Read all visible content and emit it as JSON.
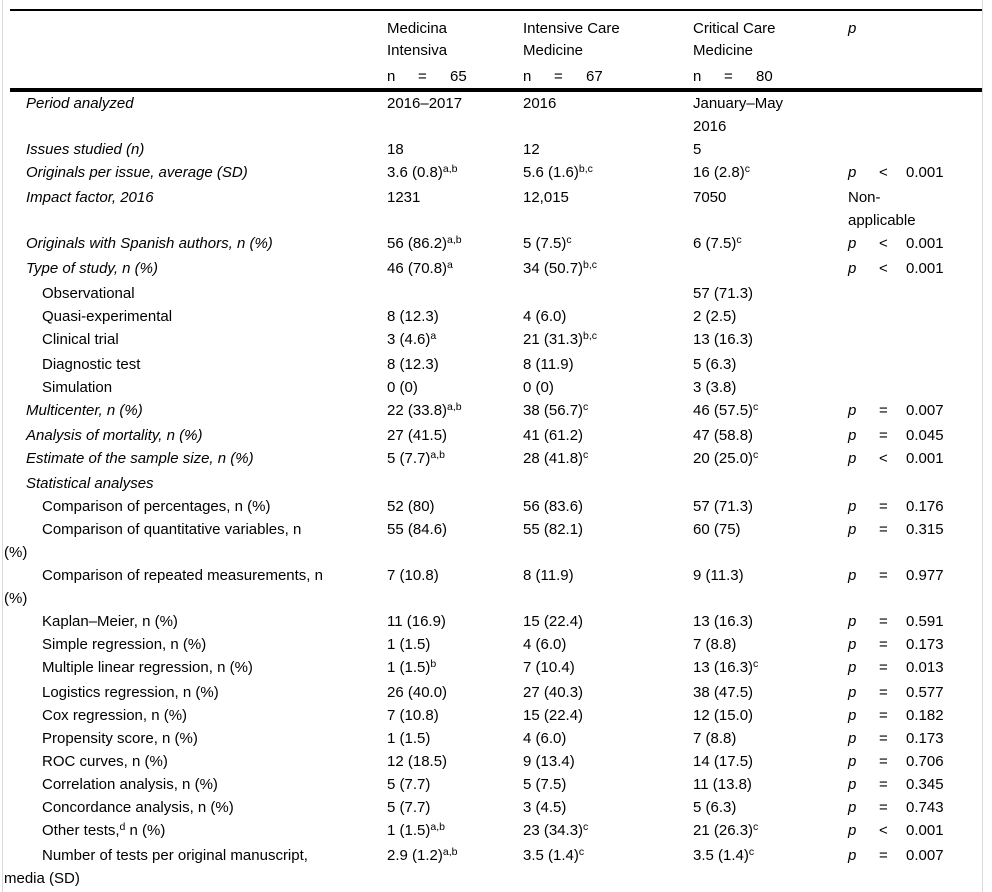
{
  "table": {
    "p_letter": "p",
    "columns": [
      "Medicina\nIntensiva",
      "Intensive Care\nMedicine",
      "Critical Care\nMedicine",
      "p"
    ],
    "n_row": [
      {
        "letter": "n",
        "op": "=",
        "value": "65"
      },
      {
        "letter": "n",
        "op": "=",
        "value": "67"
      },
      {
        "letter": "n",
        "op": "=",
        "value": "80"
      }
    ],
    "rows": [
      {
        "label": "Period analyzed",
        "italic": true,
        "indent": 0,
        "cells": [
          {
            "t": "2016–2017"
          },
          {
            "t": "2016"
          },
          {
            "t": "January–May\n2016"
          }
        ],
        "p": null
      },
      {
        "label": "Issues studied (n)",
        "italic": true,
        "indent": 0,
        "cells": [
          {
            "t": "18"
          },
          {
            "t": "12"
          },
          {
            "t": "5"
          }
        ],
        "p": null
      },
      {
        "label": "Originals per issue, average (SD)",
        "italic": true,
        "indent": 0,
        "cells": [
          {
            "t": "3.6 (0.8)",
            "sup": "a,b"
          },
          {
            "t": "5.6 (1.6)",
            "sup": "b,c"
          },
          {
            "t": "16 (2.8)",
            "sup": "c"
          }
        ],
        "p": {
          "op": "<",
          "value": "0.001"
        }
      },
      {
        "label": "Impact factor, 2016",
        "italic": true,
        "indent": 0,
        "cells": [
          {
            "t": "1231"
          },
          {
            "t": "12,015"
          },
          {
            "t": "7050"
          }
        ],
        "p": {
          "text": "Non-\napplicable"
        }
      },
      {
        "label": "Originals with Spanish authors, n (%)",
        "italic": true,
        "indent": 0,
        "cells": [
          {
            "t": "56 (86.2)",
            "sup": "a,b"
          },
          {
            "t": "5 (7.5)",
            "sup": "c"
          },
          {
            "t": "6 (7.5)",
            "sup": "c"
          }
        ],
        "p": {
          "op": "<",
          "value": "0.001"
        }
      },
      {
        "label": "Type of study, n (%)",
        "italic": true,
        "indent": 0,
        "cells": [
          {
            "t": "46 (70.8)",
            "sup": "a"
          },
          {
            "t": "34 (50.7)",
            "sup": "b,c"
          },
          {
            "t": ""
          }
        ],
        "p": {
          "op": "<",
          "value": "0.001"
        }
      },
      {
        "label": "Observational",
        "italic": false,
        "indent": 1,
        "cells": [
          {
            "t": ""
          },
          {
            "t": ""
          },
          {
            "t": "57 (71.3)"
          }
        ],
        "p": null
      },
      {
        "label": "Quasi-experimental",
        "italic": false,
        "indent": 1,
        "cells": [
          {
            "t": "8 (12.3)"
          },
          {
            "t": "4 (6.0)"
          },
          {
            "t": "2 (2.5)"
          }
        ],
        "p": null
      },
      {
        "label": "Clinical trial",
        "italic": false,
        "indent": 1,
        "cells": [
          {
            "t": "3 (4.6)",
            "sup": "a"
          },
          {
            "t": "21 (31.3)",
            "sup": "b,c"
          },
          {
            "t": "13 (16.3)"
          }
        ],
        "p": null
      },
      {
        "label": "Diagnostic test",
        "italic": false,
        "indent": 1,
        "cells": [
          {
            "t": "8 (12.3)"
          },
          {
            "t": "8 (11.9)"
          },
          {
            "t": "5 (6.3)"
          }
        ],
        "p": null
      },
      {
        "label": "Simulation",
        "italic": false,
        "indent": 1,
        "cells": [
          {
            "t": "0 (0)"
          },
          {
            "t": "0 (0)"
          },
          {
            "t": "3 (3.8)"
          }
        ],
        "p": null
      },
      {
        "label": "Multicenter, n (%)",
        "italic": true,
        "indent": 0,
        "cells": [
          {
            "t": "22 (33.8)",
            "sup": "a,b"
          },
          {
            "t": "38 (56.7)",
            "sup": "c"
          },
          {
            "t": "46 (57.5)",
            "sup": "c"
          }
        ],
        "p": {
          "op": "=",
          "value": "0.007"
        }
      },
      {
        "label": "Analysis of mortality, n (%)",
        "italic": true,
        "indent": 0,
        "cells": [
          {
            "t": "27 (41.5)"
          },
          {
            "t": "41 (61.2)"
          },
          {
            "t": "47 (58.8)"
          }
        ],
        "p": {
          "op": "=",
          "value": "0.045"
        }
      },
      {
        "label": "Estimate of the sample size, n (%)",
        "italic": true,
        "indent": 0,
        "cells": [
          {
            "t": "5 (7.7)",
            "sup": "a,b"
          },
          {
            "t": "28 (41.8)",
            "sup": "c"
          },
          {
            "t": "20 (25.0)",
            "sup": "c"
          }
        ],
        "p": {
          "op": "<",
          "value": "0.001"
        }
      },
      {
        "label": "Statistical analyses",
        "italic": true,
        "indent": 0,
        "cells": [
          {
            "t": ""
          },
          {
            "t": ""
          },
          {
            "t": ""
          }
        ],
        "p": null
      },
      {
        "label": "Comparison of percentages, n (%)",
        "italic": false,
        "indent": 1,
        "cells": [
          {
            "t": "52 (80)"
          },
          {
            "t": "56 (83.6)"
          },
          {
            "t": "57 (71.3)"
          }
        ],
        "p": {
          "op": "=",
          "value": "0.176"
        }
      },
      {
        "label": "Comparison of quantitative variables, n\n(%)",
        "italic": false,
        "indent": 1,
        "cells": [
          {
            "t": "55 (84.6)"
          },
          {
            "t": "55 (82.1)"
          },
          {
            "t": "60 (75)"
          }
        ],
        "p": {
          "op": "=",
          "value": "0.315"
        }
      },
      {
        "label": "Comparison of repeated measurements, n\n(%)",
        "italic": false,
        "indent": 1,
        "cells": [
          {
            "t": "7 (10.8)"
          },
          {
            "t": "8 (11.9)"
          },
          {
            "t": "9 (11.3)"
          }
        ],
        "p": {
          "op": "=",
          "value": "0.977"
        }
      },
      {
        "label": "Kaplan–Meier, n (%)",
        "italic": false,
        "indent": 1,
        "cells": [
          {
            "t": "11 (16.9)"
          },
          {
            "t": "15 (22.4)"
          },
          {
            "t": "13 (16.3)"
          }
        ],
        "p": {
          "op": "=",
          "value": "0.591"
        }
      },
      {
        "label": "Simple regression, n (%)",
        "italic": false,
        "indent": 1,
        "cells": [
          {
            "t": "1 (1.5)"
          },
          {
            "t": "4 (6.0)"
          },
          {
            "t": "7 (8.8)"
          }
        ],
        "p": {
          "op": "=",
          "value": "0.173"
        }
      },
      {
        "label": "Multiple linear regression, n (%)",
        "italic": false,
        "indent": 1,
        "cells": [
          {
            "t": "1 (1.5)",
            "sup": "b"
          },
          {
            "t": "7 (10.4)"
          },
          {
            "t": "13 (16.3)",
            "sup": "c"
          }
        ],
        "p": {
          "op": "=",
          "value": "0.013"
        }
      },
      {
        "label": "Logistics regression, n (%)",
        "italic": false,
        "indent": 1,
        "cells": [
          {
            "t": "26 (40.0)"
          },
          {
            "t": "27 (40.3)"
          },
          {
            "t": "38 (47.5)"
          }
        ],
        "p": {
          "op": "=",
          "value": "0.577"
        }
      },
      {
        "label": "Cox regression, n (%)",
        "italic": false,
        "indent": 1,
        "cells": [
          {
            "t": "7 (10.8)"
          },
          {
            "t": "15 (22.4)"
          },
          {
            "t": "12 (15.0)"
          }
        ],
        "p": {
          "op": "=",
          "value": "0.182"
        }
      },
      {
        "label": "Propensity score, n (%)",
        "italic": false,
        "indent": 1,
        "cells": [
          {
            "t": "1 (1.5)"
          },
          {
            "t": "4 (6.0)"
          },
          {
            "t": "7 (8.8)"
          }
        ],
        "p": {
          "op": "=",
          "value": "0.173"
        }
      },
      {
        "label": "ROC curves, n (%)",
        "italic": false,
        "indent": 1,
        "cells": [
          {
            "t": "12 (18.5)"
          },
          {
            "t": "9 (13.4)"
          },
          {
            "t": "14 (17.5)"
          }
        ],
        "p": {
          "op": "=",
          "value": "0.706"
        }
      },
      {
        "label": "Correlation analysis, n (%)",
        "italic": false,
        "indent": 1,
        "cells": [
          {
            "t": "5 (7.7)"
          },
          {
            "t": "5 (7.5)"
          },
          {
            "t": "11 (13.8)"
          }
        ],
        "p": {
          "op": "=",
          "value": "0.345"
        }
      },
      {
        "label": "Concordance analysis, n (%)",
        "italic": false,
        "indent": 1,
        "cells": [
          {
            "t": "5 (7.7)"
          },
          {
            "t": "3 (4.5)"
          },
          {
            "t": "5 (6.3)"
          }
        ],
        "p": {
          "op": "=",
          "value": "0.743"
        }
      },
      {
        "label": "Other tests,",
        "label_sup": "d",
        "label_rest": " n (%)",
        "italic": false,
        "indent": 1,
        "cells": [
          {
            "t": "1 (1.5)",
            "sup": "a,b"
          },
          {
            "t": "23 (34.3)",
            "sup": "c"
          },
          {
            "t": "21 (26.3)",
            "sup": "c"
          }
        ],
        "p": {
          "op": "<",
          "value": "0.001"
        }
      },
      {
        "label": "Number of tests per original manuscript,\nmedia (SD)",
        "italic": false,
        "indent": 1,
        "cells": [
          {
            "t": "2.9 (1.2)",
            "sup": "a,b"
          },
          {
            "t": "3.5 (1.4)",
            "sup": "c"
          },
          {
            "t": "3.5 (1.4)",
            "sup": "c"
          }
        ],
        "p": {
          "op": "=",
          "value": "0.007"
        }
      }
    ]
  }
}
